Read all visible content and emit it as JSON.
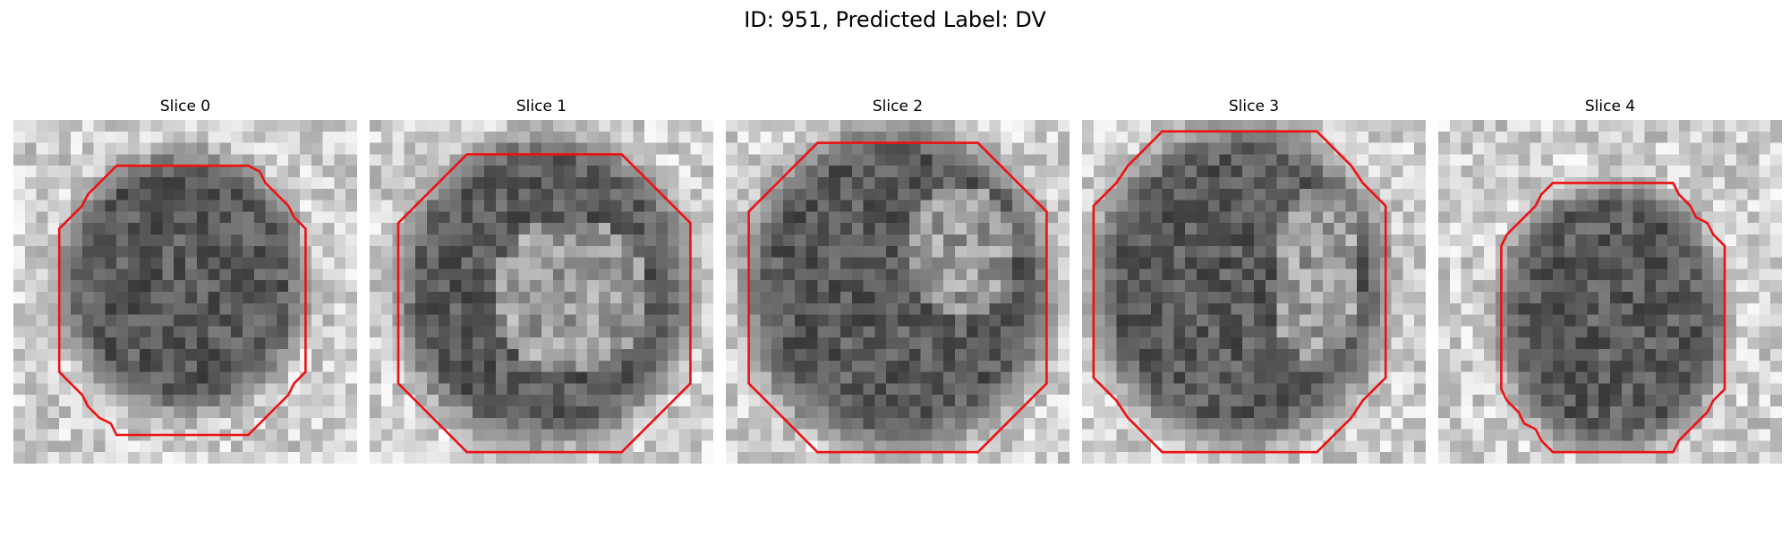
{
  "title": "ID: 951, Predicted Label: DV",
  "contour_color": "#ee1111",
  "colormap": "gray",
  "panels": [
    {
      "title": "Slice 0"
    },
    {
      "title": "Slice 1"
    },
    {
      "title": "Slice 2"
    },
    {
      "title": "Slice 3"
    },
    {
      "title": "Slice 4"
    }
  ]
}
